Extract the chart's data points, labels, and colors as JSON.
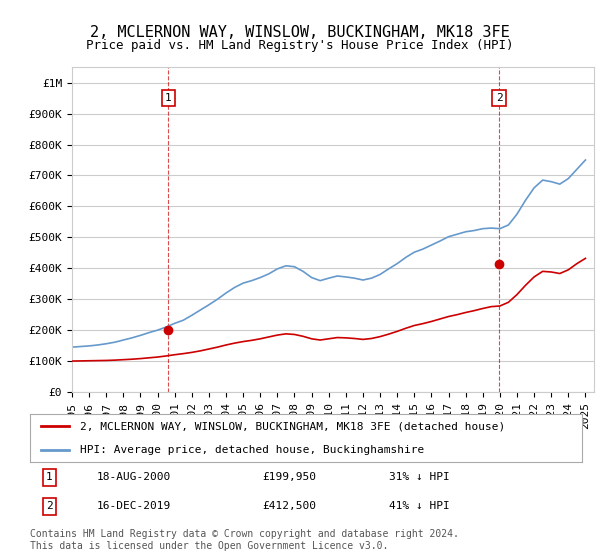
{
  "title": "2, MCLERNON WAY, WINSLOW, BUCKINGHAM, MK18 3FE",
  "subtitle": "Price paid vs. HM Land Registry's House Price Index (HPI)",
  "xlabel": "",
  "ylabel": "",
  "background_color": "#ffffff",
  "plot_bg_color": "#ffffff",
  "grid_color": "#cccccc",
  "hpi_color": "#6699cc",
  "price_color": "#cc0000",
  "marker1_color": "#cc0000",
  "marker2_color": "#cc0000",
  "legend_label_price": "2, MCLERNON WAY, WINSLOW, BUCKINGHAM, MK18 3FE (detached house)",
  "legend_label_hpi": "HPI: Average price, detached house, Buckinghamshire",
  "transaction1_label": "1",
  "transaction1_date": "18-AUG-2000",
  "transaction1_price": "£199,950",
  "transaction1_hpi": "31% ↓ HPI",
  "transaction2_label": "2",
  "transaction2_date": "16-DEC-2019",
  "transaction2_price": "£412,500",
  "transaction2_hpi": "41% ↓ HPI",
  "footer": "Contains HM Land Registry data © Crown copyright and database right 2024.\nThis data is licensed under the Open Government Licence v3.0.",
  "ylim": [
    0,
    1050000
  ],
  "yticks": [
    0,
    100000,
    200000,
    300000,
    400000,
    500000,
    600000,
    700000,
    800000,
    900000,
    1000000
  ],
  "ytick_labels": [
    "£0",
    "£100K",
    "£200K",
    "£300K",
    "£400K",
    "£500K",
    "£600K",
    "£700K",
    "£800K",
    "£900K",
    "£1M"
  ],
  "xlim_start": 1995.5,
  "xlim_end": 2025.5,
  "hpi_x": [
    1995,
    1995.5,
    1996,
    1996.5,
    1997,
    1997.5,
    1998,
    1998.5,
    1999,
    1999.5,
    2000,
    2000.5,
    2001,
    2001.5,
    2002,
    2002.5,
    2003,
    2003.5,
    2004,
    2004.5,
    2005,
    2005.5,
    2006,
    2006.5,
    2007,
    2007.5,
    2008,
    2008.5,
    2009,
    2009.5,
    2010,
    2010.5,
    2011,
    2011.5,
    2012,
    2012.5,
    2013,
    2013.5,
    2014,
    2014.5,
    2015,
    2015.5,
    2016,
    2016.5,
    2017,
    2017.5,
    2018,
    2018.5,
    2019,
    2019.5,
    2020,
    2020.5,
    2021,
    2021.5,
    2022,
    2022.5,
    2023,
    2023.5,
    2024,
    2024.5,
    2025
  ],
  "hpi_y": [
    145000,
    147000,
    149000,
    152000,
    156000,
    161000,
    168000,
    175000,
    183000,
    192000,
    200000,
    210000,
    222000,
    232000,
    248000,
    265000,
    282000,
    300000,
    320000,
    338000,
    352000,
    360000,
    370000,
    382000,
    398000,
    408000,
    405000,
    390000,
    370000,
    360000,
    368000,
    375000,
    372000,
    368000,
    362000,
    368000,
    380000,
    398000,
    415000,
    435000,
    452000,
    462000,
    475000,
    488000,
    502000,
    510000,
    518000,
    522000,
    528000,
    530000,
    528000,
    540000,
    575000,
    620000,
    660000,
    685000,
    680000,
    672000,
    690000,
    720000,
    750000
  ],
  "price_x": [
    1995,
    1995.5,
    1996,
    1996.5,
    1997,
    1997.5,
    1998,
    1998.5,
    1999,
    1999.5,
    2000,
    2000.5,
    2001,
    2001.5,
    2002,
    2002.5,
    2003,
    2003.5,
    2004,
    2004.5,
    2005,
    2005.5,
    2006,
    2006.5,
    2007,
    2007.5,
    2008,
    2008.5,
    2009,
    2009.5,
    2010,
    2010.5,
    2011,
    2011.5,
    2012,
    2012.5,
    2013,
    2013.5,
    2014,
    2014.5,
    2015,
    2015.5,
    2016,
    2016.5,
    2017,
    2017.5,
    2018,
    2018.5,
    2019,
    2019.5,
    2020,
    2020.5,
    2021,
    2021.5,
    2022,
    2022.5,
    2023,
    2023.5,
    2024,
    2024.5,
    2025
  ],
  "price_y": [
    100000,
    100500,
    101000,
    101500,
    102000,
    103000,
    104500,
    106000,
    108000,
    110500,
    113000,
    116500,
    120500,
    124000,
    128000,
    133000,
    139000,
    145000,
    152000,
    158000,
    163000,
    167000,
    172000,
    178000,
    184000,
    188000,
    186000,
    180000,
    172000,
    168000,
    172000,
    176000,
    175000,
    173000,
    170000,
    173000,
    179000,
    187000,
    196000,
    206000,
    215000,
    221000,
    228000,
    236000,
    244000,
    250000,
    257000,
    263000,
    270000,
    276000,
    278000,
    290000,
    315000,
    345000,
    372000,
    390000,
    388000,
    383000,
    395000,
    415000,
    432000
  ],
  "marker1_x": 2000.63,
  "marker1_y": 199950,
  "marker2_x": 2019.96,
  "marker2_y": 412500,
  "dashed1_x": 2000.63,
  "dashed2_x": 2019.96,
  "title_fontsize": 11,
  "subtitle_fontsize": 9,
  "tick_fontsize": 8,
  "legend_fontsize": 8,
  "footer_fontsize": 7
}
